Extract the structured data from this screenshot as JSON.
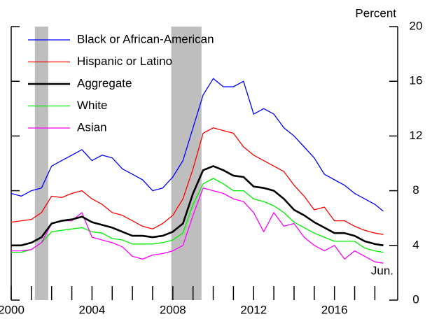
{
  "chart_data": {
    "type": "line",
    "y_axis_label": "Percent",
    "annotation": "Jun.",
    "x": [
      2000,
      2000.5,
      2001,
      2001.5,
      2002,
      2002.5,
      2003,
      2003.5,
      2004,
      2004.5,
      2005,
      2005.5,
      2006,
      2006.5,
      2007,
      2007.5,
      2008,
      2008.5,
      2009,
      2009.5,
      2010,
      2010.5,
      2011,
      2011.5,
      2012,
      2012.5,
      2013,
      2013.5,
      2014,
      2014.5,
      2015,
      2015.5,
      2016,
      2016.5,
      2017,
      2017.5,
      2018,
      2018.42
    ],
    "series": [
      {
        "name": "Black or African-American",
        "color": "#0000ff",
        "width": 1.3,
        "values": [
          7.8,
          7.6,
          8.0,
          8.2,
          9.8,
          10.2,
          10.6,
          11.0,
          10.2,
          10.6,
          10.4,
          9.6,
          9.2,
          8.8,
          8.0,
          8.2,
          9.0,
          10.2,
          12.6,
          15.0,
          16.2,
          15.6,
          15.6,
          16.0,
          13.6,
          14.0,
          13.6,
          12.6,
          12.0,
          11.2,
          10.4,
          9.2,
          8.8,
          8.4,
          7.8,
          7.4,
          7.0,
          6.5
        ]
      },
      {
        "name": "Hispanic or Latino",
        "color": "#ff0000",
        "width": 1.3,
        "values": [
          5.7,
          5.8,
          5.9,
          6.4,
          7.6,
          7.5,
          7.8,
          8.0,
          7.4,
          7.0,
          6.4,
          6.2,
          5.8,
          5.4,
          5.2,
          5.6,
          6.2,
          7.4,
          9.6,
          12.2,
          12.6,
          12.4,
          12.2,
          11.2,
          10.6,
          10.2,
          9.8,
          9.4,
          8.4,
          7.6,
          6.6,
          6.8,
          5.8,
          5.8,
          5.4,
          5.1,
          4.9,
          4.8
        ]
      },
      {
        "name": "Aggregate",
        "color": "#000000",
        "width": 2.6,
        "values": [
          4.0,
          4.0,
          4.2,
          4.6,
          5.6,
          5.8,
          5.9,
          6.1,
          5.7,
          5.5,
          5.3,
          5.0,
          4.7,
          4.7,
          4.6,
          4.7,
          5.0,
          5.6,
          7.8,
          9.5,
          9.8,
          9.5,
          9.1,
          9.0,
          8.3,
          8.2,
          8.0,
          7.4,
          6.6,
          6.2,
          5.7,
          5.3,
          4.9,
          4.9,
          4.7,
          4.3,
          4.1,
          4.0
        ]
      },
      {
        "name": "White",
        "color": "#00ee00",
        "width": 1.3,
        "values": [
          3.5,
          3.5,
          3.7,
          4.2,
          5.0,
          5.1,
          5.2,
          5.3,
          5.0,
          4.9,
          4.5,
          4.4,
          4.1,
          4.1,
          4.1,
          4.2,
          4.4,
          4.9,
          7.0,
          8.5,
          8.9,
          8.5,
          8.0,
          8.0,
          7.4,
          7.2,
          6.9,
          6.4,
          5.7,
          5.3,
          4.9,
          4.6,
          4.3,
          4.3,
          4.3,
          3.8,
          3.6,
          3.5
        ]
      },
      {
        "name": "Asian",
        "color": "#ff00ff",
        "width": 1.3,
        "values": [
          3.6,
          3.6,
          3.7,
          4.2,
          5.6,
          5.8,
          5.8,
          6.4,
          4.6,
          4.4,
          4.2,
          3.9,
          3.2,
          3.0,
          3.3,
          3.4,
          3.6,
          4.0,
          6.2,
          8.2,
          8.0,
          7.8,
          7.4,
          7.2,
          6.4,
          5.0,
          6.4,
          5.4,
          5.6,
          4.6,
          4.0,
          3.6,
          4.0,
          3.0,
          3.6,
          3.2,
          2.8,
          2.7
        ]
      }
    ],
    "shaded_periods": [
      [
        2001.17,
        2001.83
      ],
      [
        2007.92,
        2009.42
      ]
    ],
    "shade_color": "#bebebe",
    "xlim": [
      2000,
      2019.13
    ],
    "xticks": [
      2000,
      2004,
      2008,
      2012,
      2016
    ],
    "xminorticks": [
      2001,
      2002,
      2003,
      2005,
      2006,
      2007,
      2009,
      2010,
      2011,
      2013,
      2014,
      2015,
      2017,
      2018
    ],
    "ylim": [
      0,
      20
    ],
    "yticks": [
      0,
      4,
      8,
      12,
      16,
      20
    ],
    "grid": false,
    "legend": "top-left"
  }
}
